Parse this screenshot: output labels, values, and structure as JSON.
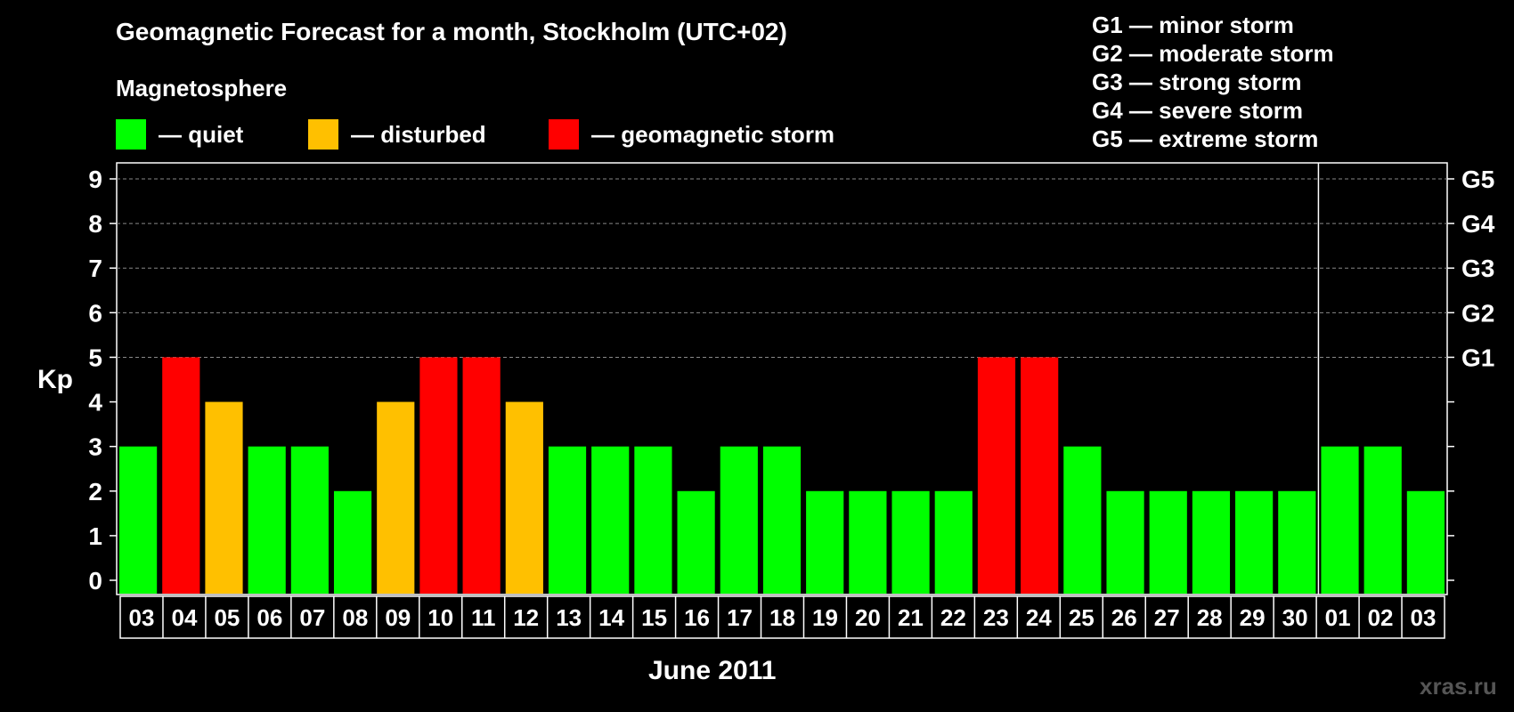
{
  "title": "Geomagnetic Forecast for a month, Stockholm (UTC+02)",
  "magnetosphere_label": "Magnetosphere",
  "legend": [
    {
      "label": "— quiet",
      "color": "#00ff00"
    },
    {
      "label": "— disturbed",
      "color": "#ffc000"
    },
    {
      "label": "— geomagnetic storm",
      "color": "#ff0000"
    }
  ],
  "g_scale": [
    "G1 — minor storm",
    "G2 — moderate storm",
    "G3 — strong storm",
    "G4 — severe storm",
    "G5 — extreme storm"
  ],
  "watermark": "xras.ru",
  "chart_data": {
    "type": "bar",
    "title": "Geomagnetic Forecast for a month, Stockholm (UTC+02)",
    "ylabel": "Kp",
    "xlabel": "June 2011",
    "ylim": [
      0,
      9
    ],
    "yticks": [
      "0",
      "1",
      "2",
      "3",
      "4",
      "5",
      "6",
      "7",
      "8",
      "9"
    ],
    "right_axis": [
      {
        "value": 5,
        "label": "G1"
      },
      {
        "value": 6,
        "label": "G2"
      },
      {
        "value": 7,
        "label": "G3"
      },
      {
        "value": 8,
        "label": "G4"
      },
      {
        "value": 9,
        "label": "G5"
      }
    ],
    "grid_from_value": 5,
    "month_break_after_index": 27,
    "categories": [
      "03",
      "04",
      "05",
      "06",
      "07",
      "08",
      "09",
      "10",
      "11",
      "12",
      "13",
      "14",
      "15",
      "16",
      "17",
      "18",
      "19",
      "20",
      "21",
      "22",
      "23",
      "24",
      "25",
      "26",
      "27",
      "28",
      "29",
      "30",
      "01",
      "02",
      "03"
    ],
    "values": [
      3,
      5,
      4,
      3,
      3,
      2,
      4,
      5,
      5,
      4,
      3,
      3,
      3,
      2,
      3,
      3,
      2,
      2,
      2,
      2,
      5,
      5,
      3,
      2,
      2,
      2,
      2,
      2,
      3,
      3,
      2
    ],
    "colors": {
      "quiet": "#00ff00",
      "disturbed": "#ffc000",
      "storm": "#ff0000"
    }
  }
}
